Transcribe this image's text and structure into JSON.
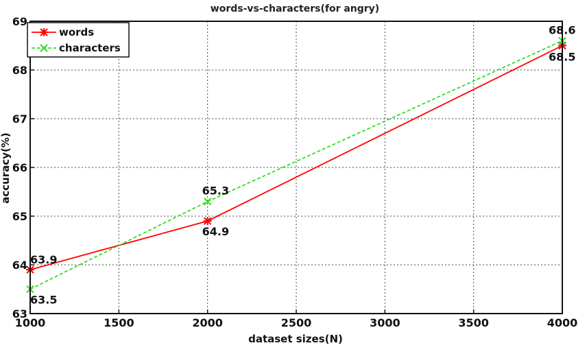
{
  "chart_data": {
    "type": "line",
    "title": "words-vs-characters(for angry)",
    "xlabel": "dataset sizes(N)",
    "ylabel": "accuracy(%)",
    "xlim": [
      1000,
      4000
    ],
    "ylim": [
      63,
      69
    ],
    "xticks": [
      1000,
      1500,
      2000,
      2500,
      3000,
      3500,
      4000
    ],
    "yticks": [
      63,
      64,
      65,
      66,
      67,
      68,
      69
    ],
    "grid": true,
    "legend_position": "top-left",
    "series": [
      {
        "name": "words",
        "color": "#ff0000",
        "line_style": "solid",
        "marker": "asterisk",
        "x": [
          1000,
          2000,
          4000
        ],
        "y": [
          63.9,
          64.9,
          68.5
        ],
        "labels": [
          "63.9",
          "64.9",
          "68.5"
        ]
      },
      {
        "name": "characters",
        "color": "#33dd22",
        "line_style": "dashed",
        "marker": "x",
        "x": [
          1000,
          2000,
          4000
        ],
        "y": [
          63.5,
          65.3,
          68.6
        ],
        "labels": [
          "63.5",
          "65.3",
          "68.6"
        ]
      }
    ]
  }
}
